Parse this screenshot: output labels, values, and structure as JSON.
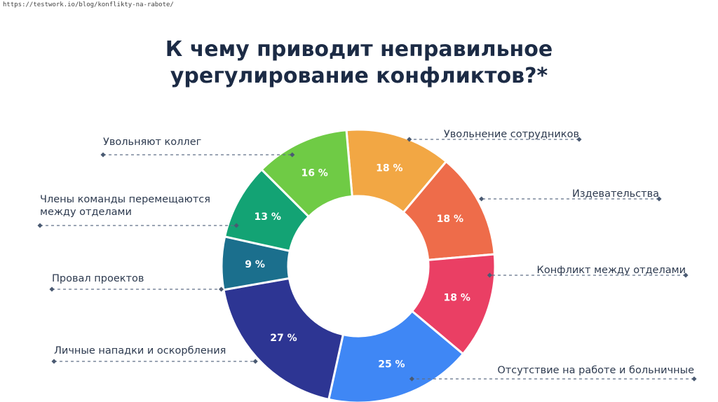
{
  "source_url": "https://testwork.io/blog/konflikty-na-rabote/",
  "title_lines": [
    "К чему приводит неправильное",
    "урегулирование конфликтов?*"
  ],
  "chart_data": {
    "type": "pie",
    "donut": true,
    "title": "К чему приводит неправильное урегулирование конфликтов?*",
    "slices": [
      {
        "label": "Увольнение сотрудников",
        "lines": [
          "Увольнение сотрудников"
        ],
        "value": 18,
        "value_label": "18 %",
        "color": "#f2a744"
      },
      {
        "label": "Издевательства",
        "lines": [
          "Издевательства"
        ],
        "value": 18,
        "value_label": "18 %",
        "color": "#ee6c4a"
      },
      {
        "label": "Конфликт между отделами",
        "lines": [
          "Конфликт между отделами"
        ],
        "value": 18,
        "value_label": "18 %",
        "color": "#ea3f64"
      },
      {
        "label": "Отсутствие на работе и больничные",
        "lines": [
          "Отсутствие на работе и больничные"
        ],
        "value": 25,
        "value_label": "25 %",
        "color": "#3f87f5"
      },
      {
        "label": "Личные нападки и оскорбления",
        "lines": [
          "Личные нападки и оскорбления"
        ],
        "value": 27,
        "value_label": "27 %",
        "color": "#2d3593"
      },
      {
        "label": "Провал проектов",
        "lines": [
          "Провал проектов"
        ],
        "value": 9,
        "value_label": "9 %",
        "color": "#1b6f8d"
      },
      {
        "label": "Члены команды перемещаются между отделами",
        "lines": [
          "Члены команды перемещаются",
          "между отделами"
        ],
        "value": 13,
        "value_label": "13 %",
        "color": "#13a374"
      },
      {
        "label": "Увольняют коллег",
        "lines": [
          "Увольняют коллег"
        ],
        "value": 16,
        "value_label": "16 %",
        "color": "#6fcb45"
      }
    ]
  }
}
